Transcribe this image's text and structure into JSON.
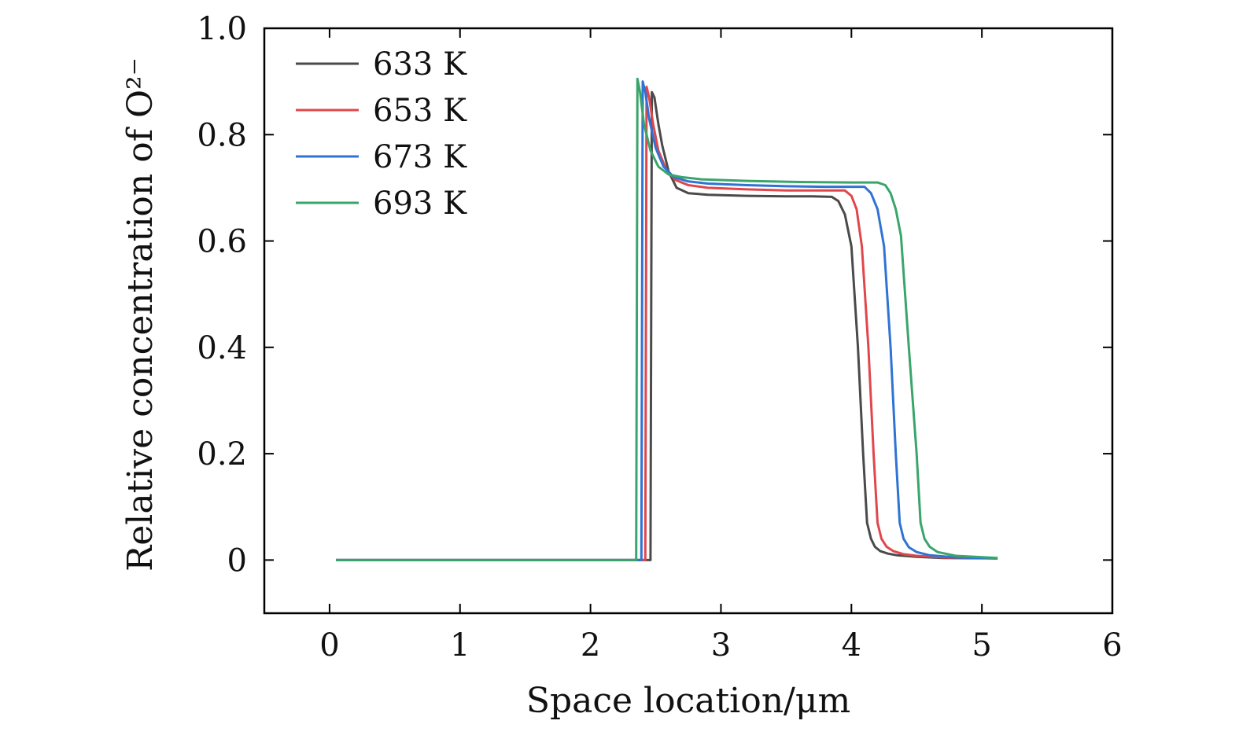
{
  "chart_data": {
    "type": "line",
    "title": "",
    "xlabel": "Space location/μm",
    "ylabel": "Relative concentration of O²⁻",
    "xlim": [
      -0.5,
      6
    ],
    "ylim": [
      -0.1,
      1.0
    ],
    "xticks": [
      0,
      1,
      2,
      3,
      4,
      5,
      6
    ],
    "xtick_labels": [
      "0",
      "1",
      "2",
      "3",
      "4",
      "5",
      "6"
    ],
    "yticks": [
      0,
      0.2,
      0.4,
      0.6,
      0.8,
      1.0
    ],
    "ytick_labels": [
      "0",
      "0.2",
      "0.4",
      "0.6",
      "0.8",
      "1.0"
    ],
    "grid": false,
    "legend_position": "top-left",
    "series": [
      {
        "name": "633 K",
        "color": "#4a4a4a",
        "x": [
          0.05,
          2.44,
          2.46,
          2.47,
          2.49,
          2.52,
          2.55,
          2.6,
          2.66,
          2.75,
          2.9,
          3.2,
          3.5,
          3.7,
          3.85,
          3.9,
          3.95,
          4.0,
          4.05,
          4.09,
          4.12,
          4.15,
          4.18,
          4.22,
          4.28,
          4.35,
          4.5,
          4.7,
          5.12
        ],
        "y": [
          0,
          0,
          0,
          0.88,
          0.87,
          0.82,
          0.78,
          0.73,
          0.7,
          0.69,
          0.687,
          0.685,
          0.684,
          0.684,
          0.683,
          0.675,
          0.65,
          0.59,
          0.4,
          0.2,
          0.07,
          0.04,
          0.025,
          0.017,
          0.012,
          0.009,
          0.006,
          0.004,
          0.003
        ]
      },
      {
        "name": "653 K",
        "color": "#e0474c",
        "x": [
          0.05,
          2.4,
          2.42,
          2.43,
          2.45,
          2.48,
          2.52,
          2.58,
          2.65,
          2.75,
          2.9,
          3.2,
          3.5,
          3.8,
          3.95,
          4.0,
          4.04,
          4.08,
          4.13,
          4.17,
          4.2,
          4.23,
          4.27,
          4.32,
          4.4,
          4.5,
          4.7,
          5.12
        ],
        "y": [
          0,
          0,
          0,
          0.89,
          0.87,
          0.82,
          0.77,
          0.735,
          0.715,
          0.705,
          0.7,
          0.697,
          0.695,
          0.695,
          0.695,
          0.685,
          0.66,
          0.59,
          0.4,
          0.2,
          0.07,
          0.04,
          0.025,
          0.017,
          0.011,
          0.008,
          0.005,
          0.003
        ]
      },
      {
        "name": "673 K",
        "color": "#2f73d4",
        "x": [
          0.05,
          2.37,
          2.39,
          2.4,
          2.42,
          2.45,
          2.5,
          2.56,
          2.64,
          2.75,
          2.9,
          3.2,
          3.5,
          3.8,
          4.1,
          4.15,
          4.2,
          4.25,
          4.3,
          4.34,
          4.37,
          4.4,
          4.44,
          4.5,
          4.6,
          4.8,
          5.12
        ],
        "y": [
          0,
          0,
          0,
          0.9,
          0.88,
          0.83,
          0.775,
          0.74,
          0.72,
          0.712,
          0.708,
          0.705,
          0.703,
          0.702,
          0.702,
          0.69,
          0.66,
          0.59,
          0.4,
          0.2,
          0.07,
          0.04,
          0.024,
          0.015,
          0.009,
          0.005,
          0.003
        ]
      },
      {
        "name": "693 K",
        "color": "#3aa56b",
        "x": [
          0.05,
          2.33,
          2.35,
          2.36,
          2.38,
          2.41,
          2.46,
          2.52,
          2.6,
          2.7,
          2.85,
          3.2,
          3.6,
          4.0,
          4.2,
          4.26,
          4.3,
          4.34,
          4.38,
          4.44,
          4.5,
          4.53,
          4.56,
          4.6,
          4.66,
          4.8,
          5.12
        ],
        "y": [
          0,
          0,
          0,
          0.905,
          0.88,
          0.82,
          0.77,
          0.74,
          0.725,
          0.72,
          0.716,
          0.713,
          0.711,
          0.71,
          0.71,
          0.705,
          0.69,
          0.66,
          0.61,
          0.4,
          0.2,
          0.07,
          0.04,
          0.025,
          0.015,
          0.008,
          0.004
        ]
      }
    ]
  }
}
